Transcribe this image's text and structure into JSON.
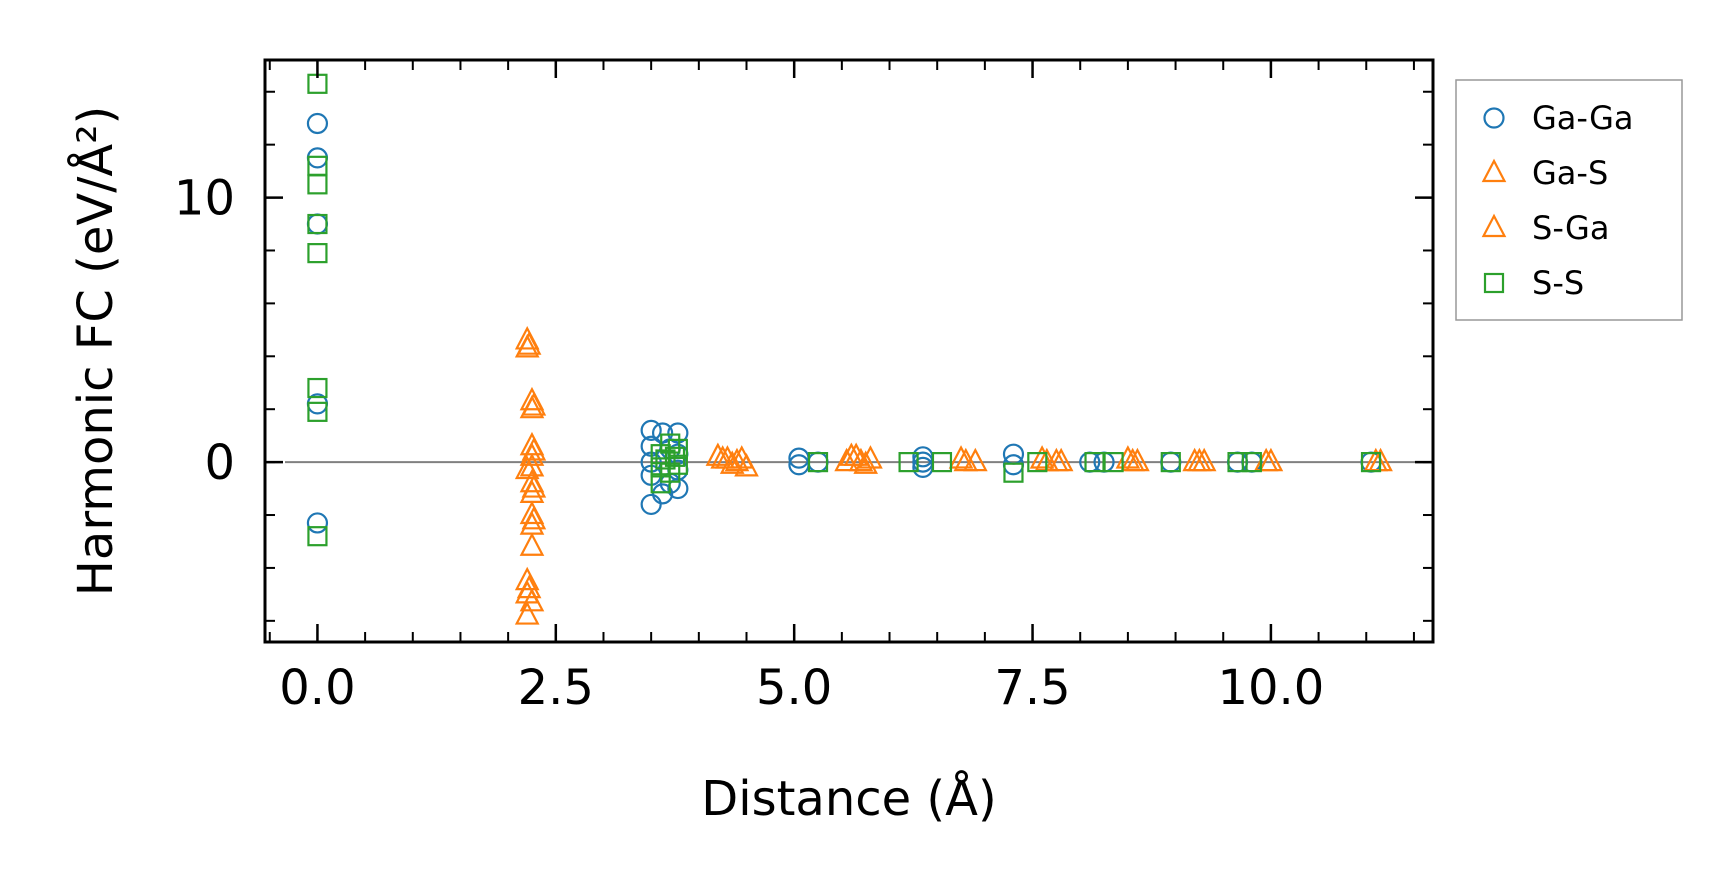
{
  "chart_data": {
    "type": "scatter",
    "title": "",
    "xlabel": "Distance (Å)",
    "ylabel": "Harmonic FC (eV/Å²)",
    "xlim": [
      -0.55,
      11.7
    ],
    "ylim": [
      -6.8,
      15.2
    ],
    "xticks": [
      0.0,
      2.5,
      5.0,
      7.5,
      10.0
    ],
    "xtick_labels": [
      "0.0",
      "2.5",
      "5.0",
      "7.5",
      "10.0"
    ],
    "xminor_step": 0.5,
    "yticks": [
      0,
      10
    ],
    "ytick_labels": [
      "0",
      "10"
    ],
    "yminor_step": 2,
    "reference_line_y": 0,
    "legend_position": "outside-right",
    "series": [
      {
        "name": "Ga-Ga",
        "marker": "circle",
        "color": "#1f77b4",
        "points": [
          [
            0.0,
            12.8
          ],
          [
            0.0,
            11.5
          ],
          [
            0.0,
            9.0
          ],
          [
            0.0,
            2.2
          ],
          [
            0.0,
            -2.3
          ],
          [
            3.5,
            1.2
          ],
          [
            3.5,
            0.6
          ],
          [
            3.5,
            0.0
          ],
          [
            3.5,
            -0.5
          ],
          [
            3.5,
            -1.6
          ],
          [
            3.62,
            1.1
          ],
          [
            3.62,
            -1.2
          ],
          [
            3.7,
            0.5
          ],
          [
            3.7,
            -0.8
          ],
          [
            3.78,
            1.1
          ],
          [
            3.78,
            0.3
          ],
          [
            3.78,
            -0.3
          ],
          [
            3.78,
            -1.0
          ],
          [
            5.05,
            0.15
          ],
          [
            5.05,
            -0.1
          ],
          [
            5.25,
            0.0
          ],
          [
            6.35,
            0.2
          ],
          [
            6.35,
            0.0
          ],
          [
            6.35,
            -0.2
          ],
          [
            7.3,
            0.3
          ],
          [
            7.3,
            -0.1
          ],
          [
            8.1,
            0.0
          ],
          [
            8.25,
            0.0
          ],
          [
            8.95,
            0.0
          ],
          [
            9.65,
            0.0
          ],
          [
            9.8,
            0.0
          ],
          [
            11.05,
            0.0
          ]
        ]
      },
      {
        "name": "Ga-S",
        "marker": "triangle",
        "color": "#ff7f0e",
        "points": [
          [
            2.2,
            4.6
          ],
          [
            2.2,
            4.3
          ],
          [
            2.25,
            2.3
          ],
          [
            2.25,
            2.0
          ],
          [
            2.25,
            0.6
          ],
          [
            2.25,
            0.2
          ],
          [
            2.25,
            -0.2
          ],
          [
            2.2,
            -0.3
          ],
          [
            2.25,
            -0.8
          ],
          [
            2.25,
            -1.2
          ],
          [
            2.25,
            -2.0
          ],
          [
            2.25,
            -2.4
          ],
          [
            2.25,
            -3.2
          ],
          [
            2.2,
            -4.5
          ],
          [
            2.2,
            -5.0
          ],
          [
            2.25,
            -5.3
          ],
          [
            2.2,
            -5.8
          ],
          [
            4.2,
            0.2
          ],
          [
            4.3,
            0.1
          ],
          [
            4.4,
            0.0
          ],
          [
            4.5,
            -0.2
          ],
          [
            5.6,
            0.2
          ],
          [
            5.7,
            0.0
          ],
          [
            5.8,
            0.1
          ],
          [
            6.75,
            0.1
          ],
          [
            6.9,
            0.0
          ],
          [
            7.6,
            0.1
          ],
          [
            7.75,
            0.0
          ],
          [
            8.5,
            0.1
          ],
          [
            8.6,
            0.0
          ],
          [
            9.2,
            0.0
          ],
          [
            9.3,
            0.0
          ],
          [
            9.95,
            0.0
          ],
          [
            11.15,
            0.0
          ]
        ]
      },
      {
        "name": "S-Ga",
        "marker": "triangle",
        "color": "#ff7f0e",
        "points": [
          [
            2.22,
            4.4
          ],
          [
            2.27,
            2.1
          ],
          [
            2.27,
            0.4
          ],
          [
            2.27,
            -1.0
          ],
          [
            2.27,
            -2.2
          ],
          [
            2.22,
            -4.8
          ],
          [
            4.25,
            0.1
          ],
          [
            4.35,
            -0.1
          ],
          [
            4.45,
            0.1
          ],
          [
            5.55,
            0.0
          ],
          [
            5.65,
            0.2
          ],
          [
            5.75,
            -0.1
          ],
          [
            6.8,
            0.0
          ],
          [
            7.65,
            0.0
          ],
          [
            7.8,
            0.0
          ],
          [
            8.55,
            0.0
          ],
          [
            9.25,
            0.0
          ],
          [
            10.0,
            0.0
          ],
          [
            11.1,
            0.0
          ]
        ]
      },
      {
        "name": "S-S",
        "marker": "square",
        "color": "#2ca02c",
        "points": [
          [
            0.0,
            14.3
          ],
          [
            0.0,
            11.2
          ],
          [
            0.0,
            10.5
          ],
          [
            0.0,
            9.0
          ],
          [
            0.0,
            7.9
          ],
          [
            0.0,
            2.8
          ],
          [
            0.0,
            1.9
          ],
          [
            0.0,
            -2.8
          ],
          [
            3.6,
            0.3
          ],
          [
            3.6,
            -0.2
          ],
          [
            3.6,
            -0.8
          ],
          [
            3.65,
            0.1
          ],
          [
            3.7,
            0.7
          ],
          [
            3.7,
            -0.4
          ],
          [
            3.75,
            0.2
          ],
          [
            3.78,
            0.5
          ],
          [
            3.78,
            -0.1
          ],
          [
            5.25,
            0.0
          ],
          [
            6.2,
            0.0
          ],
          [
            6.55,
            0.0
          ],
          [
            7.3,
            -0.4
          ],
          [
            7.55,
            0.0
          ],
          [
            8.15,
            0.0
          ],
          [
            8.35,
            0.0
          ],
          [
            8.95,
            0.0
          ],
          [
            9.65,
            0.0
          ],
          [
            9.8,
            0.0
          ],
          [
            11.05,
            0.0
          ]
        ]
      }
    ]
  }
}
